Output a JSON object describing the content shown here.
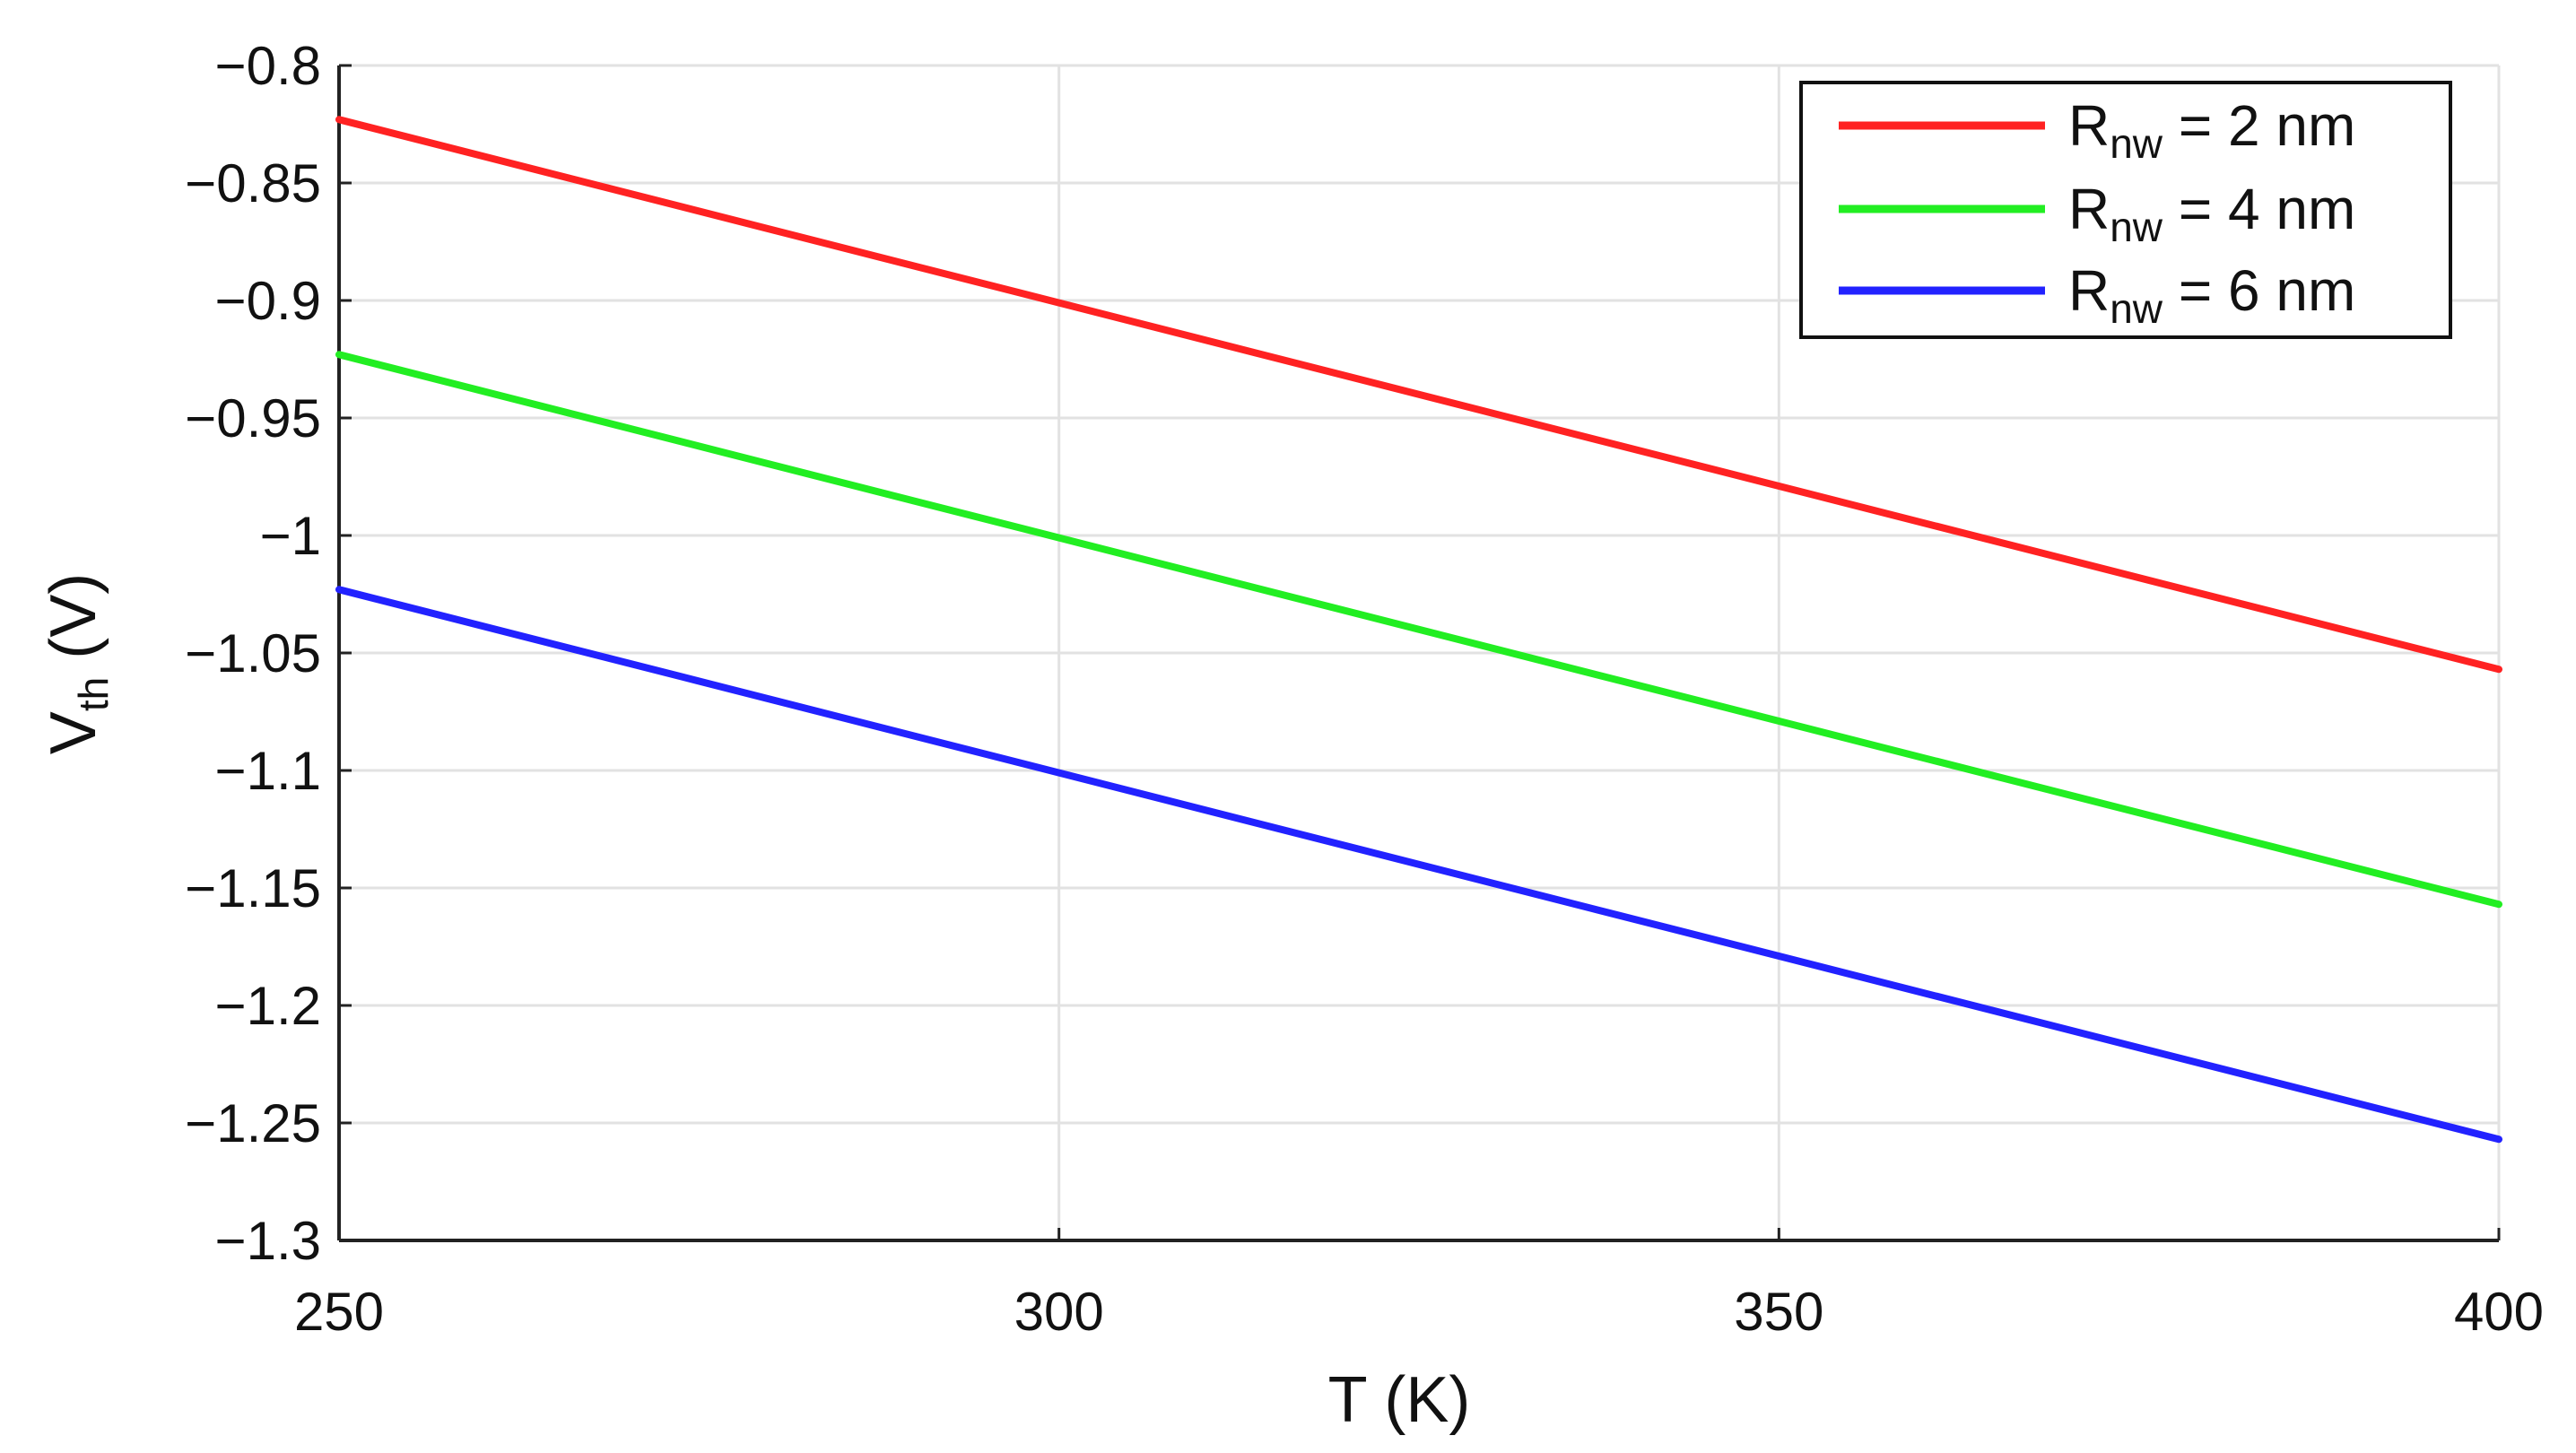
{
  "chart_data": {
    "type": "line",
    "title": "",
    "xlabel": "T (K)",
    "ylabel": {
      "main": "V",
      "sub": "th",
      "unit": " (V)"
    },
    "xlim": [
      250,
      400
    ],
    "ylim": [
      -1.3,
      -0.8
    ],
    "xticks": [
      250,
      300,
      350,
      400
    ],
    "yticks": [
      -0.8,
      -0.85,
      -0.9,
      -0.95,
      -1,
      -1.05,
      -1.1,
      -1.15,
      -1.2,
      -1.25,
      -1.3
    ],
    "ytick_labels": [
      "−0.8",
      "−0.85",
      "−0.9",
      "−0.95",
      "−1",
      "−1.05",
      "−1.1",
      "−1.15",
      "−1.2",
      "−1.25",
      "−1.3"
    ],
    "xtick_labels": [
      "250",
      "300",
      "350",
      "400"
    ],
    "grid": true,
    "legend_position": "top-right",
    "series": [
      {
        "name": {
          "main": "R",
          "sub": "nw",
          "rest": " = 2 nm"
        },
        "color": "#ff2222",
        "x": [
          250,
          400
        ],
        "y": [
          -0.823,
          -1.057
        ]
      },
      {
        "name": {
          "main": "R",
          "sub": "nw",
          "rest": " = 4 nm"
        },
        "color": "#22ee22",
        "x": [
          250,
          400
        ],
        "y": [
          -0.923,
          -1.157
        ]
      },
      {
        "name": {
          "main": "R",
          "sub": "nw",
          "rest": " = 6 nm"
        },
        "color": "#2222ff",
        "x": [
          250,
          400
        ],
        "y": [
          -1.023,
          -1.257
        ]
      }
    ]
  }
}
